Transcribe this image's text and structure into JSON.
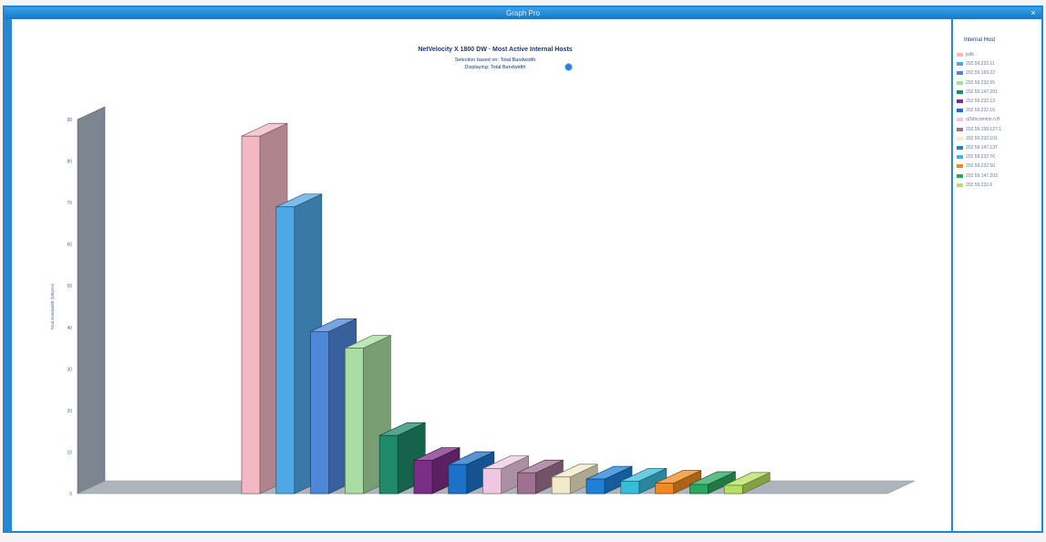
{
  "window": {
    "title": "Graph Pro",
    "close_label": "×"
  },
  "chart_data": {
    "type": "bar",
    "title": "NetVelocity X 1800 DW · Most Active Internal Hosts",
    "subtitle_lines": [
      "Selection based on: Total Bandwidth",
      "Displaying: Total Bandwidth"
    ],
    "ylabel": "Total Bandwidth (MBytes)",
    "xlabel": "",
    "ylim": [
      0,
      90
    ],
    "yticks": [
      0,
      10,
      20,
      30,
      40,
      50,
      60,
      70,
      80,
      90
    ],
    "three_d": true,
    "legend_title": "Internal Host",
    "legend_position": "right",
    "categories": [
      "jsdk",
      "202.59.232.11",
      "202.59.169.22",
      "202.59.232.55",
      "202.59.147.201",
      "202.59.232.13",
      "202.59.232.16",
      "ql3dhcommn n.B",
      "202.59.158.127.1",
      "202.59.232.101",
      "202.59.147.137",
      "202.59.232.76",
      "202.59.232.50",
      "202.59.147.203",
      "202.59.232.6"
    ],
    "values": [
      86,
      69,
      39,
      35,
      14,
      8,
      7,
      6,
      5,
      4,
      3.5,
      3,
      2.5,
      2.2,
      2
    ],
    "colors": [
      "#f4b8c4",
      "#4fa8e6",
      "#4e86d8",
      "#a8dca0",
      "#1e8a6a",
      "#7b2e86",
      "#1c72c8",
      "#eec8e2",
      "#a07090",
      "#f2eac8",
      "#1f80d8",
      "#38bcd8",
      "#f08a20",
      "#2aa860",
      "#b8e060"
    ]
  }
}
